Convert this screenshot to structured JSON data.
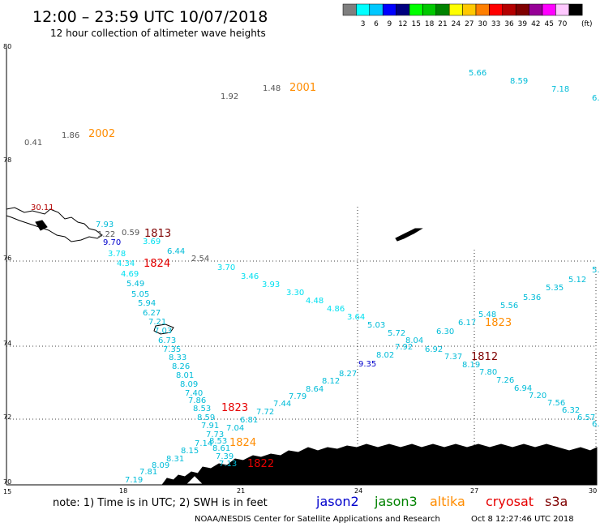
{
  "header": {
    "title": "12:00 – 23:59 UTC 10/07/2018",
    "subtitle": "12 hour collection of altimeter wave heights"
  },
  "scale": {
    "unit": "(ft)",
    "bins": [
      {
        "label": "",
        "color": "#7f7f7f"
      },
      {
        "label": "3",
        "color": "#00ffff"
      },
      {
        "label": "6",
        "color": "#00c8ff"
      },
      {
        "label": "9",
        "color": "#0000ff"
      },
      {
        "label": "12",
        "color": "#00007f"
      },
      {
        "label": "15",
        "color": "#00ff00"
      },
      {
        "label": "18",
        "color": "#00c800"
      },
      {
        "label": "21",
        "color": "#008200"
      },
      {
        "label": "24",
        "color": "#ffff00"
      },
      {
        "label": "27",
        "color": "#ffc800"
      },
      {
        "label": "30",
        "color": "#ff7f00"
      },
      {
        "label": "33",
        "color": "#ff0000"
      },
      {
        "label": "36",
        "color": "#b40000"
      },
      {
        "label": "39",
        "color": "#7f0000"
      },
      {
        "label": "42",
        "color": "#960096"
      },
      {
        "label": "45",
        "color": "#ff00ff"
      },
      {
        "label": "70",
        "color": "#ffc8ff"
      },
      {
        "label": "",
        "color": "#000000"
      }
    ]
  },
  "axes": {
    "lat_labels": [
      "80",
      "78",
      "76",
      "74",
      "72",
      "70"
    ],
    "lon_labels": [
      "15",
      "18",
      "21",
      "24",
      "27",
      "30"
    ]
  },
  "satellites": [
    {
      "name": "jason2",
      "color": "#0000cc"
    },
    {
      "name": "jason3",
      "color": "#008200"
    },
    {
      "name": "altika",
      "color": "#ff8c00"
    },
    {
      "name": "cryosat",
      "color": "#e60000"
    },
    {
      "name": "s3a",
      "color": "#7f0000"
    }
  ],
  "footer": {
    "note": "note:  1) Time is in UTC;  2) SWH is in feet",
    "credit": "NOAA/NESDIS Center for Satellite Applications and Research",
    "timestamp": "Oct  8 12:27:46 UTC 2018"
  },
  "pass_labels": [
    {
      "text": "2001",
      "color": "#ff8c00"
    },
    {
      "text": "2002",
      "color": "#ff8c00"
    },
    {
      "text": "1813",
      "color": "#7f0000"
    },
    {
      "text": "1824",
      "color": "#e60000"
    },
    {
      "text": "1823",
      "color": "#ff8c00"
    },
    {
      "text": "1812",
      "color": "#7f0000"
    },
    {
      "text": "1823",
      "color": "#e60000"
    },
    {
      "text": "1824",
      "color": "#ff8c00"
    },
    {
      "text": "1822",
      "color": "#e60000"
    }
  ],
  "wave_heights": [
    {
      "text": "0.41",
      "color": "#555555"
    },
    {
      "text": "1.86",
      "color": "#555555"
    },
    {
      "text": "1.92",
      "color": "#555555"
    },
    {
      "text": "1.48",
      "color": "#555555"
    },
    {
      "text": "5.66",
      "color": "#00bcd8"
    },
    {
      "text": "8.59",
      "color": "#00bcd8"
    },
    {
      "text": "7.18",
      "color": "#00bcd8"
    },
    {
      "text": "6.",
      "color": "#00bcd8"
    },
    {
      "text": "30.11",
      "color": "#b40000"
    },
    {
      "text": "7.93",
      "color": "#00bcd8"
    },
    {
      "text": "1.22",
      "color": "#555555"
    },
    {
      "text": "0.59",
      "color": "#555555"
    },
    {
      "text": "9.70",
      "color": "#0000cc"
    },
    {
      "text": "3.69",
      "color": "#00e0f0"
    },
    {
      "text": "6.44",
      "color": "#00bcd8"
    },
    {
      "text": "2.54",
      "color": "#555555"
    },
    {
      "text": "3.78",
      "color": "#00e0f0"
    },
    {
      "text": "4.34",
      "color": "#00e0f0"
    },
    {
      "text": "4.69",
      "color": "#00e0f0"
    },
    {
      "text": "5.49",
      "color": "#00bcd8"
    },
    {
      "text": "5.05",
      "color": "#00bcd8"
    },
    {
      "text": "5.94",
      "color": "#00bcd8"
    },
    {
      "text": "6.27",
      "color": "#00bcd8"
    },
    {
      "text": "7.21",
      "color": "#00bcd8"
    },
    {
      "text": "7.03",
      "color": "#00bcd8"
    },
    {
      "text": "6.73",
      "color": "#00bcd8"
    },
    {
      "text": "7.35",
      "color": "#00bcd8"
    },
    {
      "text": "8.33",
      "color": "#00bcd8"
    },
    {
      "text": "8.26",
      "color": "#00bcd8"
    },
    {
      "text": "8.01",
      "color": "#00bcd8"
    },
    {
      "text": "8.09",
      "color": "#00bcd8"
    },
    {
      "text": "7.40",
      "color": "#00bcd8"
    },
    {
      "text": "7.86",
      "color": "#00bcd8"
    },
    {
      "text": "8.53",
      "color": "#00bcd8"
    },
    {
      "text": "8.59",
      "color": "#00bcd8"
    },
    {
      "text": "7.91",
      "color": "#00bcd8"
    },
    {
      "text": "7.04",
      "color": "#00bcd8"
    },
    {
      "text": "7.73",
      "color": "#00bcd8"
    },
    {
      "text": "7.14",
      "color": "#00bcd8"
    },
    {
      "text": "8.53",
      "color": "#00bcd8"
    },
    {
      "text": "8.61",
      "color": "#00bcd8"
    },
    {
      "text": "7.39",
      "color": "#00bcd8"
    },
    {
      "text": "7.13",
      "color": "#00bcd8"
    },
    {
      "text": "8.15",
      "color": "#00bcd8"
    },
    {
      "text": "8.31",
      "color": "#00bcd8"
    },
    {
      "text": "8.09",
      "color": "#00bcd8"
    },
    {
      "text": "7.81",
      "color": "#00bcd8"
    },
    {
      "text": "7.19",
      "color": "#00bcd8"
    },
    {
      "text": "6.81",
      "color": "#00bcd8"
    },
    {
      "text": "7.72",
      "color": "#00bcd8"
    },
    {
      "text": "7.44",
      "color": "#00bcd8"
    },
    {
      "text": "7.79",
      "color": "#00bcd8"
    },
    {
      "text": "8.64",
      "color": "#00bcd8"
    },
    {
      "text": "8.12",
      "color": "#00bcd8"
    },
    {
      "text": "8.27",
      "color": "#00bcd8"
    },
    {
      "text": "9.35",
      "color": "#0000cc"
    },
    {
      "text": "8.02",
      "color": "#00bcd8"
    },
    {
      "text": "7.92",
      "color": "#00bcd8"
    },
    {
      "text": "8.04",
      "color": "#00bcd8"
    },
    {
      "text": "6.92",
      "color": "#00bcd8"
    },
    {
      "text": "7.37",
      "color": "#00bcd8"
    },
    {
      "text": "8.19",
      "color": "#00bcd8"
    },
    {
      "text": "7.80",
      "color": "#00bcd8"
    },
    {
      "text": "7.26",
      "color": "#00bcd8"
    },
    {
      "text": "6.94",
      "color": "#00bcd8"
    },
    {
      "text": "7.20",
      "color": "#00bcd8"
    },
    {
      "text": "7.56",
      "color": "#00bcd8"
    },
    {
      "text": "6.32",
      "color": "#00bcd8"
    },
    {
      "text": "6.57",
      "color": "#00bcd8"
    },
    {
      "text": "6.",
      "color": "#00bcd8"
    },
    {
      "text": "3.70",
      "color": "#00e0f0"
    },
    {
      "text": "3.46",
      "color": "#00e0f0"
    },
    {
      "text": "3.93",
      "color": "#00e0f0"
    },
    {
      "text": "3.30",
      "color": "#00e0f0"
    },
    {
      "text": "4.48",
      "color": "#00e0f0"
    },
    {
      "text": "4.86",
      "color": "#00e0f0"
    },
    {
      "text": "3.64",
      "color": "#00e0f0"
    },
    {
      "text": "5.03",
      "color": "#00bcd8"
    },
    {
      "text": "5.72",
      "color": "#00bcd8"
    },
    {
      "text": "6.30",
      "color": "#00bcd8"
    },
    {
      "text": "6.17",
      "color": "#00bcd8"
    },
    {
      "text": "5.48",
      "color": "#00bcd8"
    },
    {
      "text": "5.56",
      "color": "#00bcd8"
    },
    {
      "text": "5.36",
      "color": "#00bcd8"
    },
    {
      "text": "5.35",
      "color": "#00bcd8"
    },
    {
      "text": "5.12",
      "color": "#00bcd8"
    },
    {
      "text": "5.",
      "color": "#00bcd8"
    }
  ]
}
